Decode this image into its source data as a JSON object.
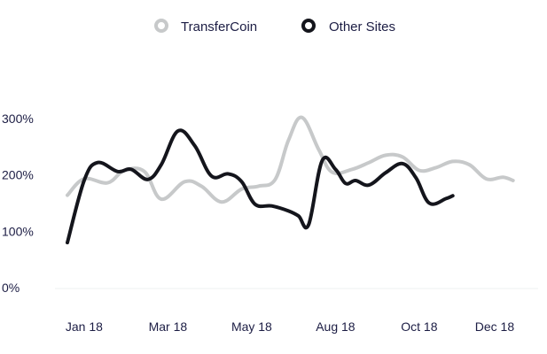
{
  "chart_data": {
    "type": "line",
    "legend_position": "top-center",
    "grid": false,
    "ylim": [
      0,
      300
    ],
    "y_ticks": [
      {
        "value": 0,
        "label": "0%"
      },
      {
        "value": 100,
        "label": "100%"
      },
      {
        "value": 200,
        "label": "200%"
      },
      {
        "value": 300,
        "label": "300%"
      }
    ],
    "x_tick_labels": [
      {
        "x": 0.5,
        "label": "Jan 18"
      },
      {
        "x": 3.0,
        "label": "Mar 18"
      },
      {
        "x": 5.5,
        "label": "May 18"
      },
      {
        "x": 8.0,
        "label": "Aug 18"
      },
      {
        "x": 10.5,
        "label": "Oct 18"
      },
      {
        "x": 12.75,
        "label": "Dec 18"
      }
    ],
    "series": [
      {
        "name": "TransferCoin",
        "color": "#c7c9ca",
        "points": [
          [
            0,
            164
          ],
          [
            0.5,
            193
          ],
          [
            1.2,
            186
          ],
          [
            1.7,
            208
          ],
          [
            2.3,
            206
          ],
          [
            2.8,
            157
          ],
          [
            3.5,
            188
          ],
          [
            4.0,
            180
          ],
          [
            4.6,
            152
          ],
          [
            5.2,
            175
          ],
          [
            5.7,
            180
          ],
          [
            6.2,
            192
          ],
          [
            6.6,
            262
          ],
          [
            7.0,
            302
          ],
          [
            7.5,
            245
          ],
          [
            7.9,
            205
          ],
          [
            8.5,
            210
          ],
          [
            9.0,
            222
          ],
          [
            9.5,
            235
          ],
          [
            10.0,
            232
          ],
          [
            10.5,
            208
          ],
          [
            11.0,
            213
          ],
          [
            11.5,
            224
          ],
          [
            12.0,
            218
          ],
          [
            12.5,
            193
          ],
          [
            13.0,
            196
          ],
          [
            13.3,
            190
          ]
        ]
      },
      {
        "name": "Other Sites",
        "color": "#14151c",
        "points": [
          [
            0,
            80
          ],
          [
            0.5,
            190
          ],
          [
            0.9,
            222
          ],
          [
            1.5,
            206
          ],
          [
            1.9,
            210
          ],
          [
            2.4,
            192
          ],
          [
            2.8,
            218
          ],
          [
            3.3,
            278
          ],
          [
            3.8,
            252
          ],
          [
            4.3,
            198
          ],
          [
            4.8,
            202
          ],
          [
            5.2,
            188
          ],
          [
            5.6,
            148
          ],
          [
            6.1,
            145
          ],
          [
            6.6,
            136
          ],
          [
            6.9,
            127
          ],
          [
            7.2,
            112
          ],
          [
            7.6,
            225
          ],
          [
            8.0,
            210
          ],
          [
            8.3,
            185
          ],
          [
            8.6,
            190
          ],
          [
            9.0,
            182
          ],
          [
            9.5,
            204
          ],
          [
            10.0,
            220
          ],
          [
            10.4,
            195
          ],
          [
            10.8,
            150
          ],
          [
            11.3,
            158
          ],
          [
            11.5,
            163
          ]
        ]
      }
    ]
  }
}
